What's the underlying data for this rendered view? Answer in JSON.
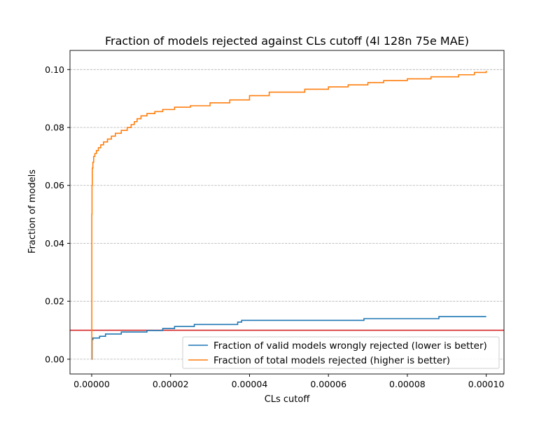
{
  "chart_data": {
    "type": "line",
    "title": "Fraction of models rejected against CLs cutoff (4l 128n 75e MAE)",
    "xlabel": "CLs cutoff",
    "ylabel": "Fraction of models",
    "xlim": [
      -5.5e-06,
      0.0001045
    ],
    "ylim": [
      -0.0051,
      0.1066
    ],
    "x_ticks": [
      0,
      2e-05,
      4e-05,
      6e-05,
      8e-05,
      0.0001
    ],
    "x_tick_labels": [
      "0.00000",
      "0.00002",
      "0.00004",
      "0.00006",
      "0.00008",
      "0.00010"
    ],
    "y_ticks": [
      0,
      0.02,
      0.04,
      0.06,
      0.08,
      0.1
    ],
    "y_tick_labels": [
      "0.00",
      "0.02",
      "0.04",
      "0.06",
      "0.08",
      "0.10"
    ],
    "grid": "y-dashed",
    "legend_position": "lower-right",
    "series": [
      {
        "name": "Fraction of valid models wrongly rejected (lower is better)",
        "color": "#1f77b4",
        "step": true,
        "points": [
          [
            0,
            0
          ],
          [
            1e-07,
            0.0068
          ],
          [
            3e-07,
            0.0073
          ],
          [
            2e-06,
            0.0079
          ],
          [
            3.5e-06,
            0.0087
          ],
          [
            7.5e-06,
            0.0094
          ],
          [
            1.4e-05,
            0.0099
          ],
          [
            1.8e-05,
            0.0106
          ],
          [
            2.1e-05,
            0.0113
          ],
          [
            2.6e-05,
            0.012
          ],
          [
            3.7e-05,
            0.0128
          ],
          [
            3.8e-05,
            0.0134
          ],
          [
            6.9e-05,
            0.014
          ],
          [
            8.8e-05,
            0.0147
          ],
          [
            0.0001,
            0.0147
          ]
        ]
      },
      {
        "name": "Fraction of total models rejected (higher is better)",
        "color": "#ff7f0e",
        "step": true,
        "points": [
          [
            0,
            0
          ],
          [
            3e-08,
            0.05
          ],
          [
            8e-08,
            0.06
          ],
          [
            1.5e-07,
            0.066
          ],
          [
            3e-07,
            0.068
          ],
          [
            5e-07,
            0.07
          ],
          [
            8e-07,
            0.071
          ],
          [
            1.2e-06,
            0.072
          ],
          [
            1.7e-06,
            0.073
          ],
          [
            2.3e-06,
            0.074
          ],
          [
            3e-06,
            0.075
          ],
          [
            4e-06,
            0.076
          ],
          [
            5e-06,
            0.077
          ],
          [
            6e-06,
            0.078
          ],
          [
            7.5e-06,
            0.079
          ],
          [
            9e-06,
            0.08
          ],
          [
            1e-05,
            0.081
          ],
          [
            1.08e-05,
            0.082
          ],
          [
            1.15e-05,
            0.083
          ],
          [
            1.25e-05,
            0.084
          ],
          [
            1.4e-05,
            0.0848
          ],
          [
            1.6e-05,
            0.0855
          ],
          [
            1.8e-05,
            0.0862
          ],
          [
            2.1e-05,
            0.087
          ],
          [
            2.5e-05,
            0.0875
          ],
          [
            3e-05,
            0.0885
          ],
          [
            3.5e-05,
            0.0895
          ],
          [
            4e-05,
            0.091
          ],
          [
            4.5e-05,
            0.0922
          ],
          [
            5.4e-05,
            0.0932
          ],
          [
            6e-05,
            0.094
          ],
          [
            6.5e-05,
            0.0947
          ],
          [
            7e-05,
            0.0955
          ],
          [
            7.4e-05,
            0.0962
          ],
          [
            8e-05,
            0.0968
          ],
          [
            8.6e-05,
            0.0975
          ],
          [
            9.3e-05,
            0.0982
          ],
          [
            9.7e-05,
            0.099
          ],
          [
            0.0001,
            0.0996
          ]
        ]
      }
    ],
    "reference_lines": [
      {
        "axis": "y",
        "value": 0.01,
        "color": "#d62728"
      }
    ]
  }
}
